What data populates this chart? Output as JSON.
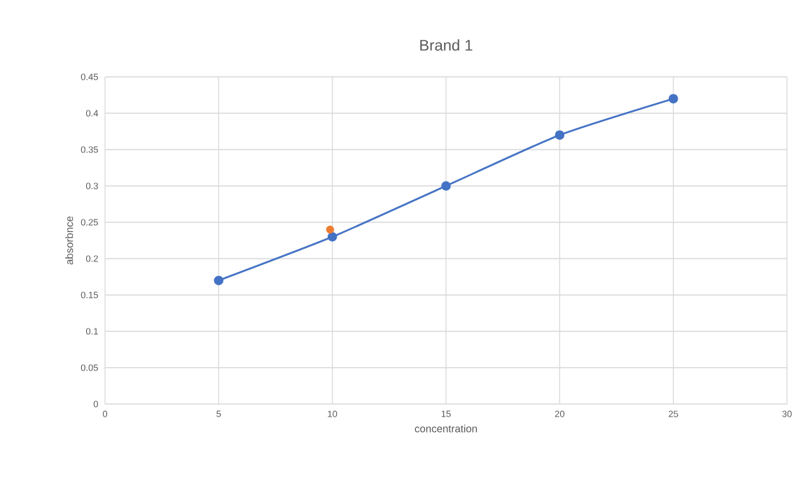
{
  "chart_data": {
    "type": "line",
    "title": "Brand 1",
    "xlabel": "concentration",
    "ylabel": "absorbnce",
    "xlim": [
      0,
      30
    ],
    "xticks": [
      0,
      5,
      10,
      15,
      20,
      25,
      30
    ],
    "ylim": [
      0,
      0.45
    ],
    "yticks": [
      0,
      0.05,
      0.1,
      0.15,
      0.2,
      0.25,
      0.3,
      0.35,
      0.4,
      0.45
    ],
    "grid": true,
    "marker": "circle",
    "series": [
      {
        "color": "#4472c4",
        "x": [
          5,
          10,
          15,
          20,
          25
        ],
        "values": [
          0.17,
          0.23,
          0.3,
          0.37,
          0.42
        ]
      },
      {
        "type": "scatter",
        "color": "#ed7d31",
        "x": [
          9.9
        ],
        "values": [
          0.24
        ]
      }
    ]
  }
}
